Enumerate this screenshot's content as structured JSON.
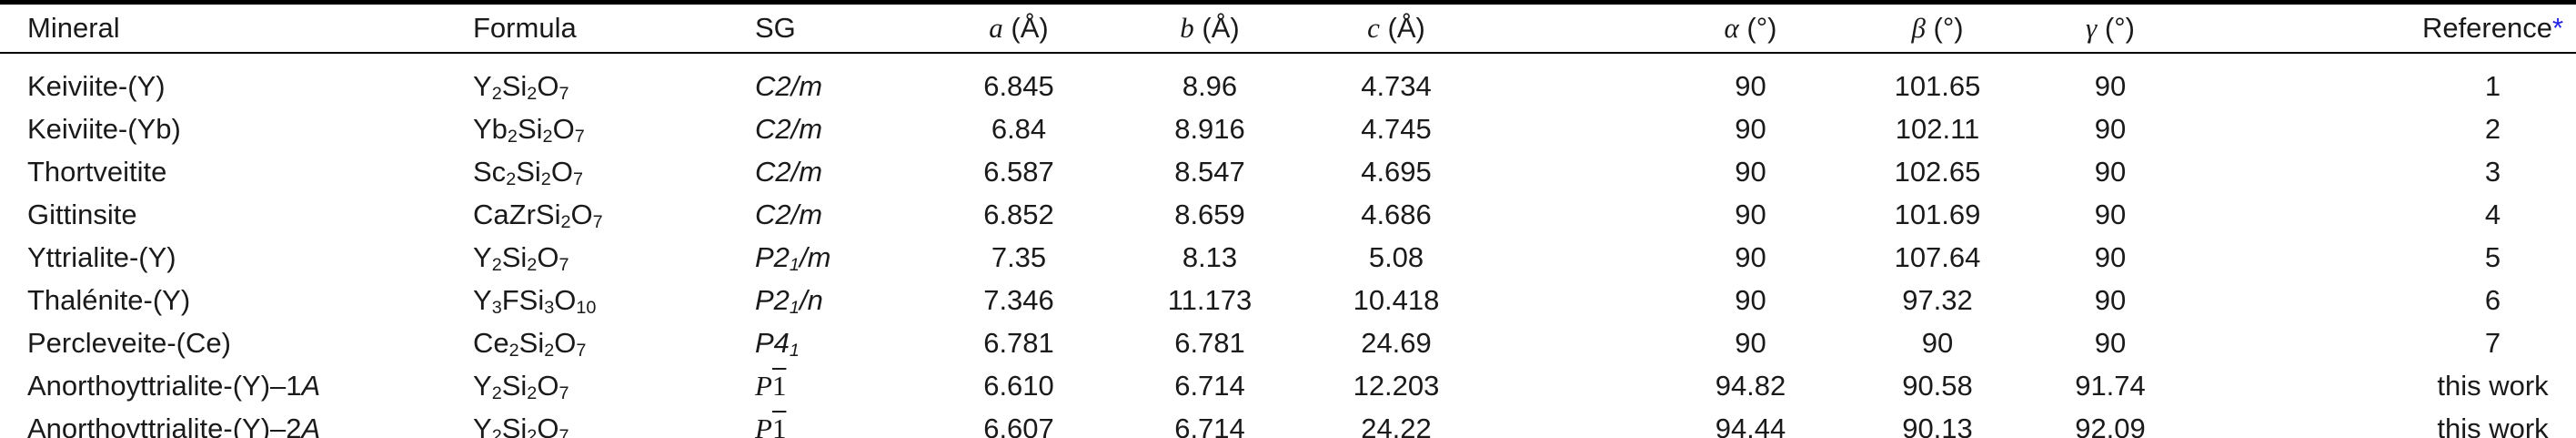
{
  "page": {
    "background": "#ffffff",
    "text_color": "#1a1a1a",
    "rule_color": "#000000",
    "marker_color": "#2323e6"
  },
  "table": {
    "columns": [
      {
        "key": "mineral",
        "label": "Mineral"
      },
      {
        "key": "formula",
        "label": "Formula"
      },
      {
        "key": "sg",
        "label": "SG"
      },
      {
        "key": "a",
        "symbol": "a",
        "unit": "(Å)"
      },
      {
        "key": "b",
        "symbol": "b",
        "unit": "(Å)"
      },
      {
        "key": "c",
        "symbol": "c",
        "unit": "(Å)"
      },
      {
        "key": "alpha",
        "symbol": "α",
        "unit": "(°)"
      },
      {
        "key": "beta",
        "symbol": "β",
        "unit": "(°)"
      },
      {
        "key": "gamma",
        "symbol": "γ",
        "unit": "(°)"
      },
      {
        "key": "reference",
        "label": "Reference",
        "marker": "*"
      }
    ],
    "rows": [
      {
        "mineral": "Keiviite-(Y)",
        "formula": "Y_2Si_2O_7",
        "sg": "C2/m",
        "a": "6.845",
        "b": "8.96",
        "c": "4.734",
        "alpha": "90",
        "beta": "101.65",
        "gamma": "90",
        "reference": "1"
      },
      {
        "mineral": "Keiviite-(Yb)",
        "formula": "Yb_2Si_2O_7",
        "sg": "C2/m",
        "a": "6.84",
        "b": "8.916",
        "c": "4.745",
        "alpha": "90",
        "beta": "102.11",
        "gamma": "90",
        "reference": "2"
      },
      {
        "mineral": "Thortveitite",
        "formula": "Sc_2Si_2O_7",
        "sg": "C2/m",
        "a": "6.587",
        "b": "8.547",
        "c": "4.695",
        "alpha": "90",
        "beta": "102.65",
        "gamma": "90",
        "reference": "3"
      },
      {
        "mineral": "Gittinsite",
        "formula": "CaZrSi_2O_7",
        "sg": "C2/m",
        "a": "6.852",
        "b": "8.659",
        "c": "4.686",
        "alpha": "90",
        "beta": "101.69",
        "gamma": "90",
        "reference": "4"
      },
      {
        "mineral": "Yttrialite-(Y)",
        "formula": "Y_2Si_2O_7",
        "sg": "P2_1/m",
        "a": "7.35",
        "b": "8.13",
        "c": "5.08",
        "alpha": "90",
        "beta": "107.64",
        "gamma": "90",
        "reference": "5"
      },
      {
        "mineral": "Thalénite-(Y)",
        "formula": "Y_3FSi_3O_10",
        "sg": "P2_1/n",
        "a": "7.346",
        "b": "11.173",
        "c": "10.418",
        "alpha": "90",
        "beta": "97.32",
        "gamma": "90",
        "reference": "6"
      },
      {
        "mineral": "Percleveite-(Ce)",
        "formula": "Ce_2Si_2O_7",
        "sg": "P4_1",
        "a": "6.781",
        "b": "6.781",
        "c": "24.69",
        "alpha": "90",
        "beta": "90",
        "gamma": "90",
        "reference": "7"
      },
      {
        "mineral": "Anorthoyttrialite-(Y)–1*A*",
        "formula": "Y_2Si_2O_7",
        "sg": "P-1",
        "a": "6.610",
        "b": "6.714",
        "c": "12.203",
        "alpha": "94.82",
        "beta": "90.58",
        "gamma": "91.74",
        "reference": "this work"
      },
      {
        "mineral": "Anorthoyttrialite-(Y)–2*A*",
        "formula": "Y_2Si_2O_7",
        "sg": "P-1",
        "a": "6.607",
        "b": "6.714",
        "c": "24.22",
        "alpha": "94.44",
        "beta": "90.13",
        "gamma": "92.09",
        "reference": "this work"
      }
    ]
  }
}
